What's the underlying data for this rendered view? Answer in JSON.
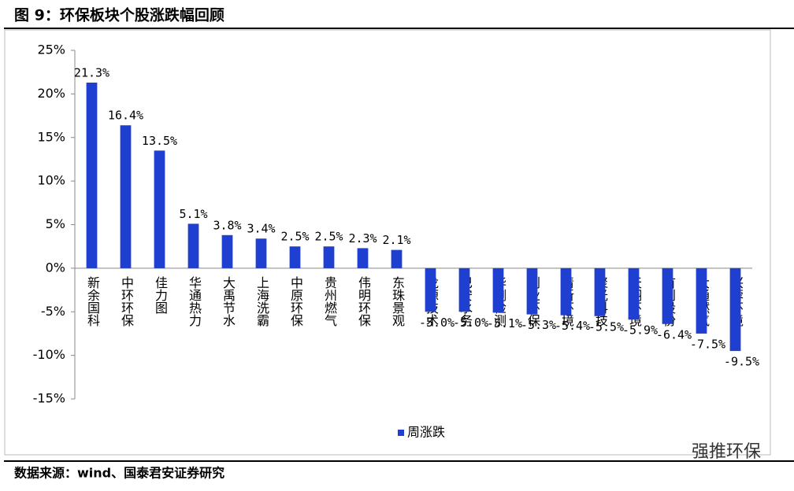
{
  "chart_data": {
    "type": "bar",
    "title": "图 9：环保板块个股涨跌幅回顾",
    "source": "数据来源：wind、国泰君安证券研究",
    "watermark": "强推环保",
    "categories": [
      "新余国科",
      "中环环保",
      "佳力图",
      "华通热力",
      "大禹节水",
      "上海洗霸",
      "中原环保",
      "贵州燃气",
      "伟明环保",
      "东珠景观",
      "龙源技术",
      "巴安水务",
      "华测检测",
      "创业环保",
      "清新环境",
      "聚光科技",
      "天翔环境",
      "首创股份",
      "大通燃气",
      "兴蓉环境"
    ],
    "series": [
      {
        "name": "周涨跌",
        "color": "#1f3fd0",
        "values": [
          21.3,
          16.4,
          13.5,
          5.1,
          3.8,
          3.4,
          2.5,
          2.5,
          2.3,
          2.1,
          -5.0,
          -5.0,
          -5.1,
          -5.3,
          -5.4,
          -5.5,
          -5.9,
          -6.4,
          -7.5,
          -9.5
        ],
        "value_labels": [
          "21.3%",
          "16.4%",
          "13.5%",
          "5.1%",
          "3.8%",
          "3.4%",
          "2.5%",
          "2.5%",
          "2.3%",
          "2.1%",
          "-5.0%",
          "-5.0%",
          "-5.1%",
          "-5.3%",
          "-5.4%",
          "-5.5%",
          "-5.9%",
          "-6.4%",
          "-7.5%",
          "-9.5%"
        ]
      }
    ],
    "ylim": [
      -15,
      25
    ],
    "yticks": [
      {
        "value": -15,
        "label": "-15%"
      },
      {
        "value": -10,
        "label": "-10%"
      },
      {
        "value": -5,
        "label": "-5%"
      },
      {
        "value": 0,
        "label": "0%"
      },
      {
        "value": 5,
        "label": "5%"
      },
      {
        "value": 10,
        "label": "10%"
      },
      {
        "value": 15,
        "label": "15%"
      },
      {
        "value": 20,
        "label": "20%"
      },
      {
        "value": 25,
        "label": "25%"
      }
    ],
    "legend": "bottom"
  }
}
